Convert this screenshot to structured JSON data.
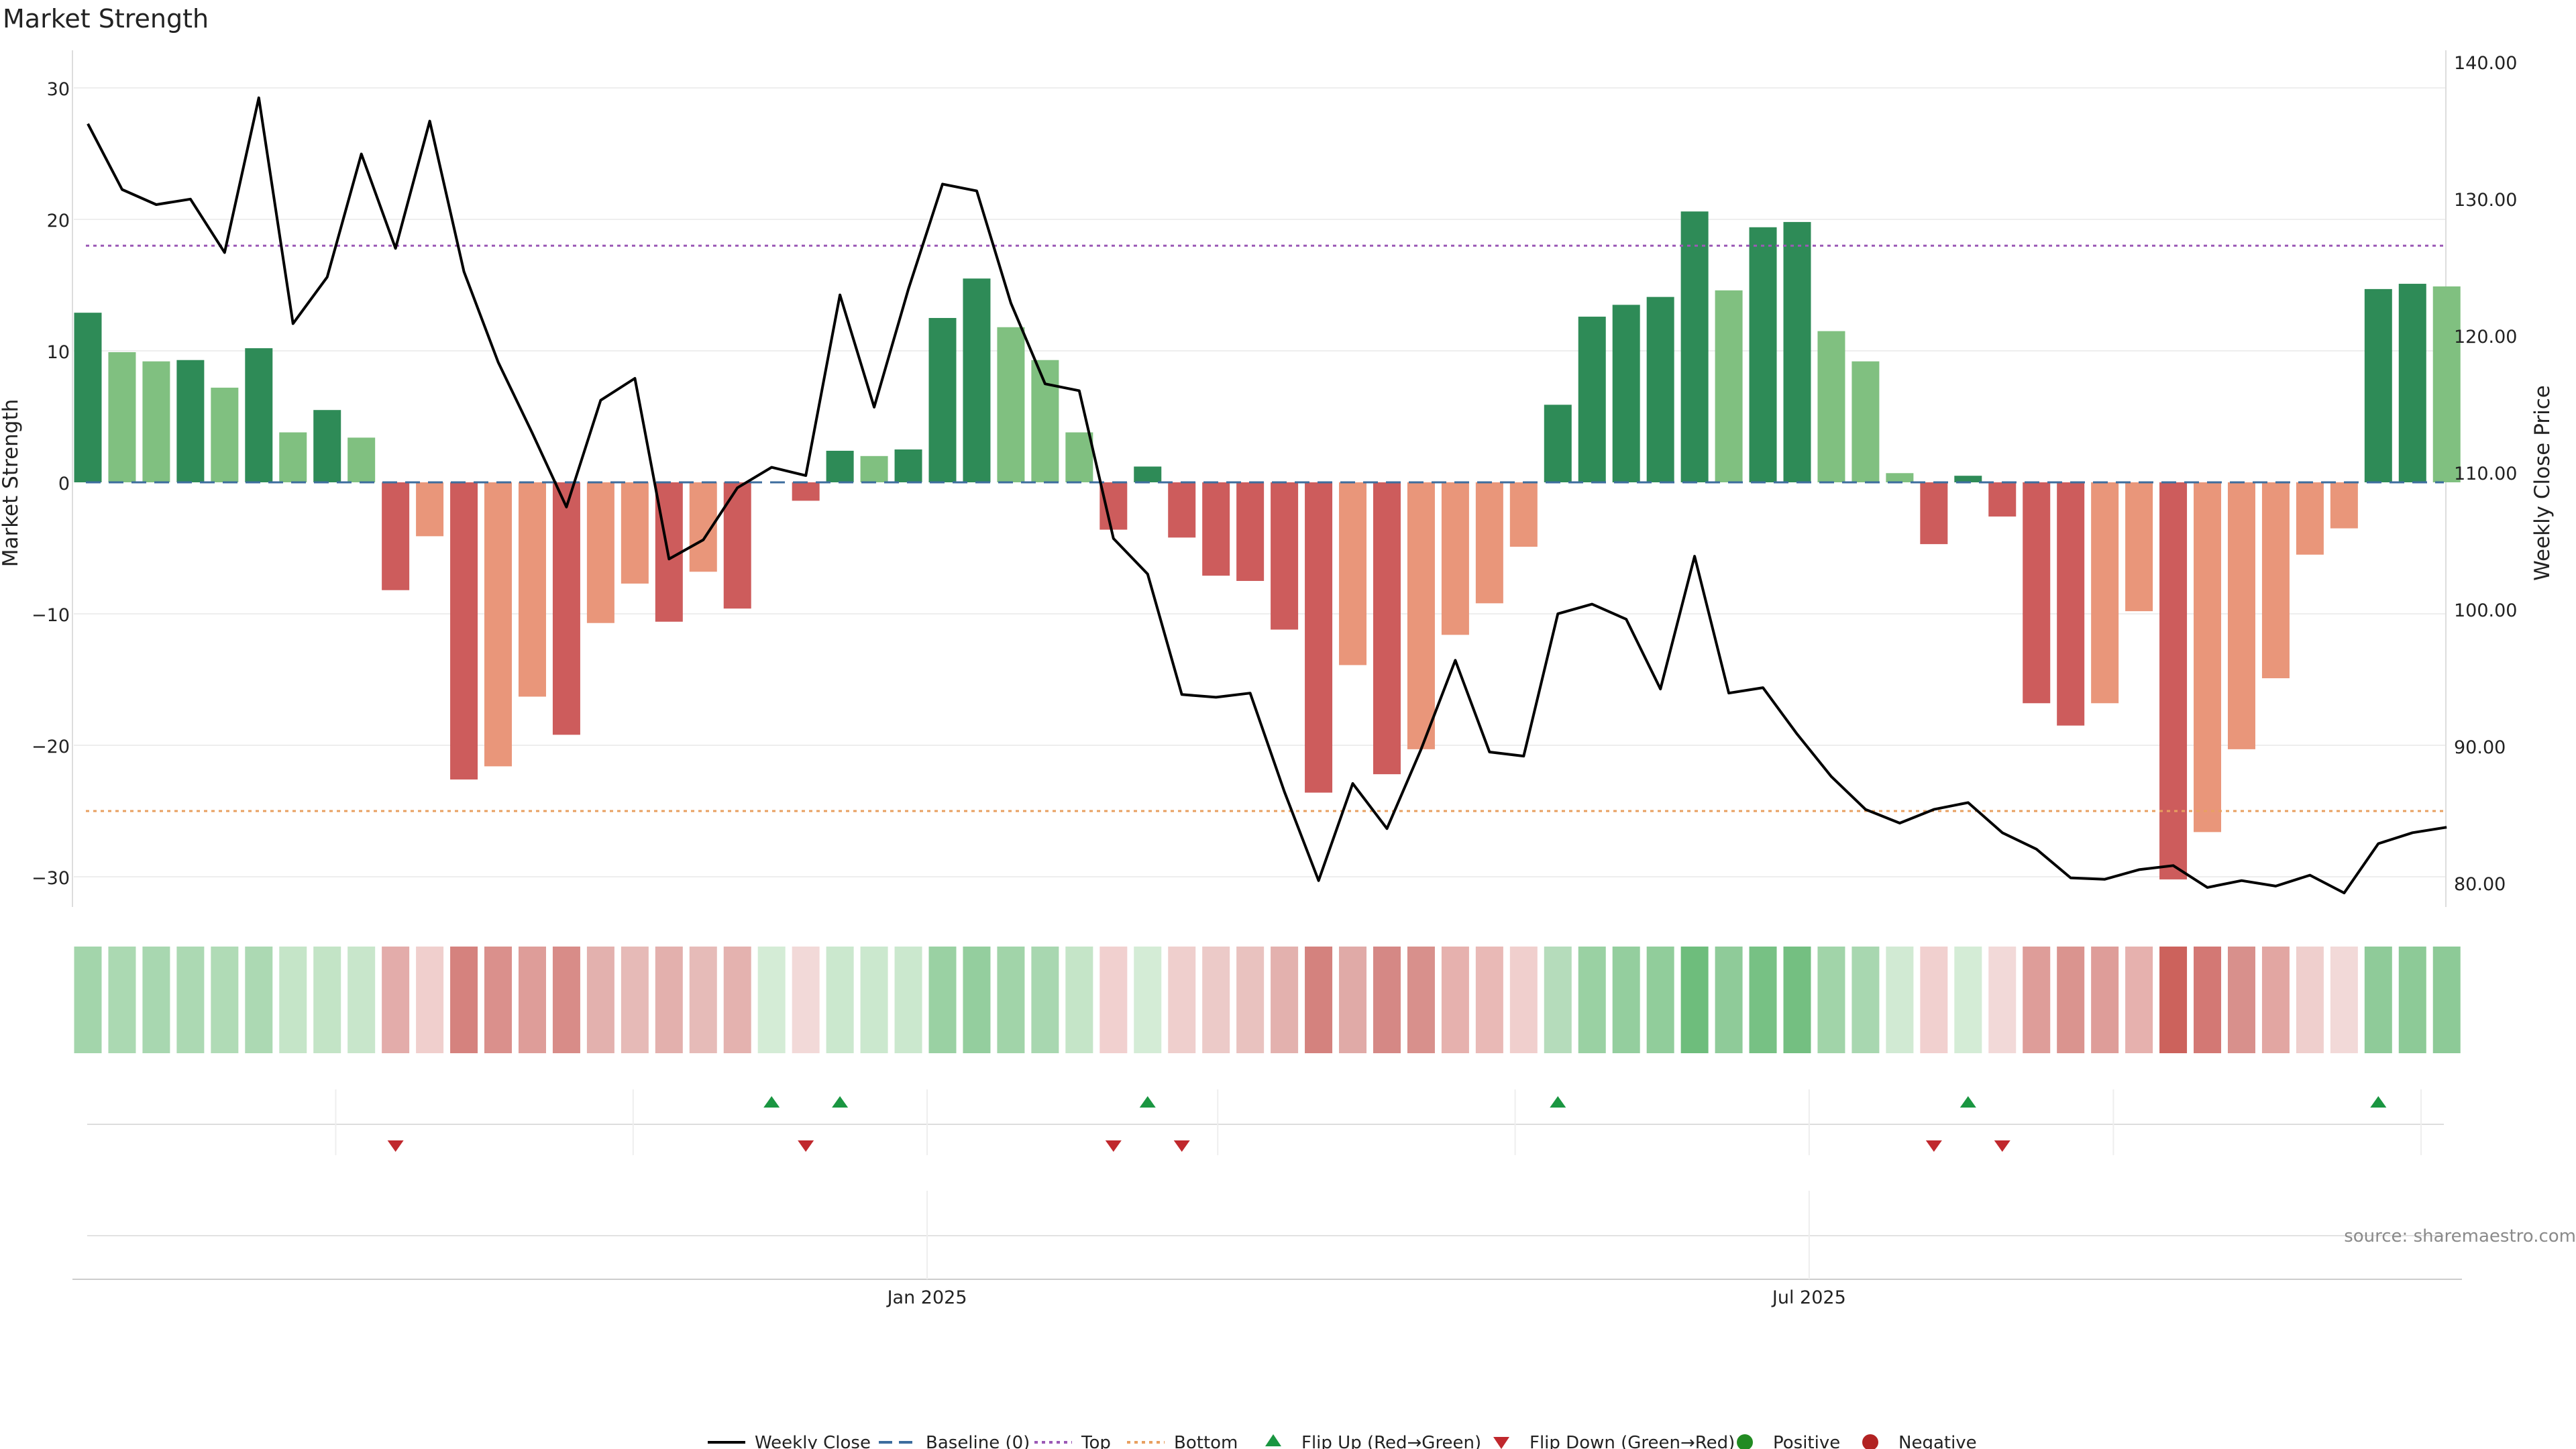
{
  "chart_data": {
    "type": "bar",
    "title": "Market Strength",
    "ylabel_left": "Market Strength",
    "ylabel_right": "Weekly Close Price",
    "ylim_left": [
      -33,
      33
    ],
    "ylim_right": [
      78,
      142
    ],
    "yticks_left": [
      "30",
      "20",
      "10",
      "0",
      "−10",
      "−20",
      "−30"
    ],
    "yticks_right": [
      "140.00",
      "130.00",
      "120.00",
      "110.00",
      "100.00",
      "90.00",
      "80.00"
    ],
    "x_ticks": [
      {
        "label": "Jan 2025",
        "index": 24.55
      },
      {
        "label": "Jul 2025",
        "index": 50.35
      }
    ],
    "x_minor_grid": [
      7.25,
      15.95,
      24.55,
      33.05,
      41.75,
      50.35,
      59.25,
      68.25
    ],
    "top_level": 18,
    "bottom_level": -25,
    "baseline": 0,
    "strength": [
      12.9,
      9.9,
      9.2,
      9.3,
      7.2,
      10.2,
      3.8,
      5.5,
      3.4,
      -8.2,
      -4.1,
      -22.6,
      -21.6,
      -16.3,
      -19.2,
      -10.7,
      -7.7,
      -10.6,
      -6.8,
      -9.6,
      0,
      -1.4,
      2.4,
      2.0,
      2.5,
      12.5,
      15.5,
      11.8,
      9.3,
      3.8,
      -3.6,
      1.2,
      -4.2,
      -7.1,
      -7.5,
      -11.2,
      -23.6,
      -13.9,
      -22.2,
      -20.3,
      -11.6,
      -9.2,
      -4.9,
      5.9,
      12.6,
      13.5,
      14.1,
      20.6,
      14.6,
      19.4,
      19.8,
      11.5,
      9.2,
      0.7,
      -4.7,
      0.5,
      -2.6,
      -16.8,
      -18.5,
      -16.8,
      -9.8,
      -30.2,
      -26.6,
      -20.3,
      -14.9,
      -5.5,
      -3.5,
      14.7,
      15.1,
      14.9
    ],
    "strength_tones": [
      "dark",
      "light",
      "light",
      "dark",
      "light",
      "dark",
      "light",
      "dark",
      "light",
      "dark",
      "light",
      "dark",
      "light",
      "light",
      "dark",
      "light",
      "light",
      "dark",
      "light",
      "dark",
      "light",
      "dark",
      "dark",
      "light",
      "dark",
      "dark",
      "dark",
      "light",
      "light",
      "light",
      "dark",
      "dark",
      "dark",
      "dark",
      "dark",
      "dark",
      "dark",
      "light",
      "dark",
      "light",
      "light",
      "light",
      "light",
      "dark",
      "dark",
      "dark",
      "dark",
      "dark",
      "light",
      "dark",
      "dark",
      "light",
      "light",
      "light",
      "dark",
      "dark",
      "dark",
      "dark",
      "dark",
      "light",
      "light",
      "dark",
      "light",
      "light",
      "light",
      "light",
      "light",
      "dark",
      "dark",
      "light"
    ],
    "weekly_close": [
      136.0,
      131.2,
      130.1,
      130.5,
      126.6,
      137.9,
      121.4,
      124.8,
      133.8,
      126.9,
      136.2,
      125.2,
      118.6,
      113.4,
      108.0,
      115.8,
      117.4,
      104.2,
      105.6,
      109.4,
      110.9,
      110.3,
      123.5,
      115.3,
      123.9,
      131.6,
      131.1,
      122.9,
      117.0,
      116.5,
      105.7,
      103.1,
      94.3,
      94.1,
      94.4,
      87.2,
      80.7,
      87.8,
      84.5,
      90.3,
      96.8,
      90.1,
      89.8,
      100.2,
      100.9,
      99.8,
      94.7,
      104.4,
      94.4,
      94.8,
      91.4,
      88.3,
      85.9,
      84.9,
      85.9,
      86.4,
      84.2,
      83.0,
      80.9,
      80.8,
      81.5,
      81.8,
      80.2,
      80.7,
      80.3,
      81.1,
      79.8,
      83.4,
      84.2,
      84.6
    ],
    "flip_up_index": [
      20,
      22,
      31,
      43,
      55,
      67
    ],
    "flip_down_index": [
      9,
      21,
      30,
      32,
      54,
      56
    ],
    "heat_colors": [
      "#a3d5ab",
      "#abd9b2",
      "#a8d7b0",
      "#acd9b3",
      "#b0dbb6",
      "#acd9b3",
      "#c5e5c8",
      "#c3e4c6",
      "#c8e6cb",
      "#e3acaa",
      "#f0cfcd",
      "#d5827e",
      "#da908c",
      "#de9d99",
      "#d88c88",
      "#e3b1ae",
      "#e6bab7",
      "#e3b0ad",
      "#e6bbb8",
      "#e4b2af",
      "#d4ecd6",
      "#f2d9d8",
      "#cbe8ce",
      "#cbe8ce",
      "#cbe8ce",
      "#9ad1a3",
      "#94ce9e",
      "#a1d4a9",
      "#a8d7b0",
      "#c5e5c8",
      "#f1d0cf",
      "#d4ecd6",
      "#efcfcd",
      "#eccac8",
      "#e9c2bf",
      "#e3b1ae",
      "#d4827e",
      "#e0aaa7",
      "#d58885",
      "#d8908c",
      "#e6b1ae",
      "#e9b9b6",
      "#f0cfcd",
      "#b5dcbb",
      "#9ad1a3",
      "#94ce9e",
      "#91cd9b",
      "#6ebd7c",
      "#8fcb99",
      "#77c184",
      "#74bf81",
      "#a1d4a9",
      "#a8d7b0",
      "#d1ead3",
      "#f1d0cf",
      "#d4ecd6",
      "#f2d9d8",
      "#de9d99",
      "#da948f",
      "#de9d99",
      "#e6b1ae",
      "#cc625c",
      "#d37874",
      "#d8908c",
      "#e2a6a2",
      "#efcfcd",
      "#f2d9d8",
      "#8fcb99",
      "#8dca97",
      "#8dca97"
    ],
    "colors": {
      "pos_dark": "#2e8b57",
      "pos_light": "#80c080",
      "neg_dark": "#cd5c5c",
      "neg_light": "#e9967a",
      "line": "#000000",
      "baseline": "#3d6d9e",
      "top": "#9b59b6",
      "bottom": "#e8a060",
      "flip_up": "#1a9641",
      "flip_down": "#c0282d",
      "positive": "#228b22",
      "negative": "#b22222"
    },
    "legend": [
      "Weekly Close",
      "Baseline (0)",
      "Top",
      "Bottom",
      "Flip Up (Red→Green)",
      "Flip Down (Green→Red)",
      "Positive",
      "Negative"
    ],
    "legend_position": "bottom",
    "grid": true,
    "source_note": "source: sharemaestro.com"
  }
}
